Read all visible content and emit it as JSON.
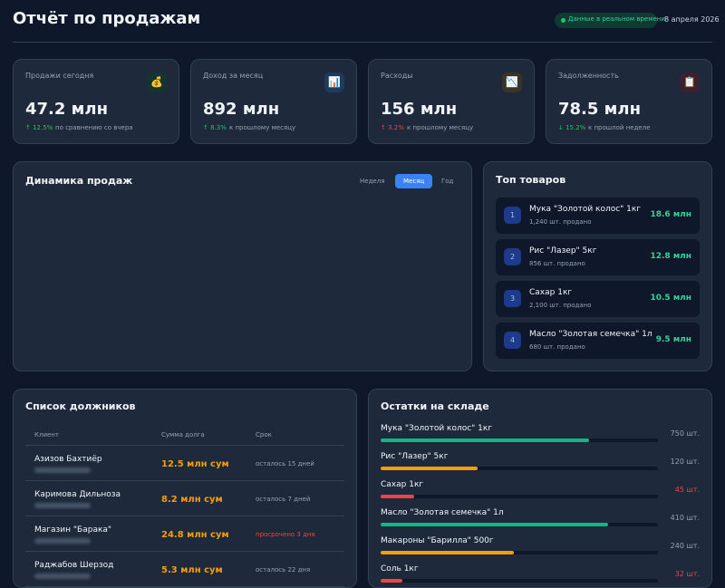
{
  "header": {
    "title": "Отчёт по продажам",
    "live_badge": "Данные в реальном времени",
    "date": "8 апреля 2026"
  },
  "kpis": [
    {
      "label": "Продажи сегодня",
      "icon": "💰",
      "icon_bg": "#14352f",
      "value": "47.2 млн",
      "change": "↑ 12.5%",
      "change_color": "#22c55e",
      "change_note": "по сравнению со вчера"
    },
    {
      "label": "Доход за месяц",
      "icon": "📊",
      "icon_bg": "#1e3a5f",
      "value": "892 млн",
      "change": "↑ 8.3%",
      "change_color": "#22c55e",
      "change_note": "к прошлому месяцу"
    },
    {
      "label": "Расходы",
      "icon": "📉",
      "icon_bg": "#3a3426",
      "value": "156 млн",
      "change": "↑ 3.2%",
      "change_color": "#ef4444",
      "change_note": "к прошлому месяцу"
    },
    {
      "label": "Задолженность",
      "icon": "📋",
      "icon_bg": "#3b2130",
      "value": "78.5 млн",
      "change": "↓ 15.2%",
      "change_color": "#22c55e",
      "change_note": "к прошлой неделе"
    }
  ],
  "sales_chart": {
    "title": "Динамика продаж",
    "tabs": [
      "Неделя",
      "Месяц",
      "Год"
    ],
    "active_tab": 1
  },
  "top_products": {
    "title": "Топ товаров",
    "items": [
      {
        "rank": "1",
        "name": "Мука \"Золотой колос\" 1кг",
        "sold": "1,240 шт. продано",
        "amount": "18.6 млн"
      },
      {
        "rank": "2",
        "name": "Рис \"Лазер\" 5кг",
        "sold": "856 шт. продано",
        "amount": "12.8 млн"
      },
      {
        "rank": "3",
        "name": "Сахар 1кг",
        "sold": "2,100 шт. продано",
        "amount": "10.5 млн"
      },
      {
        "rank": "4",
        "name": "Масло \"Золотая семечка\" 1л",
        "sold": "680 шт. продано",
        "amount": "9.5 млн"
      }
    ]
  },
  "debtors": {
    "title": "Список должников",
    "columns": [
      "Клиент",
      "Сумма долга",
      "Срок"
    ],
    "rows": [
      {
        "name": "Азизов Бахтиёр",
        "amount": "12.5 млн сум",
        "term": "осталось 15 дней",
        "term_color": "#94a3b8"
      },
      {
        "name": "Каримова Дильноза",
        "amount": "8.2 млн сум",
        "term": "осталось 7 дней",
        "term_color": "#94a3b8"
      },
      {
        "name": "Магазин \"Барака\"",
        "amount": "24.8 млн сум",
        "term": "просрочено 3 дня",
        "term_color": "#ef4444"
      },
      {
        "name": "Раджабов Шерзод",
        "amount": "5.3 млн сум",
        "term": "осталось 22 дня",
        "term_color": "#94a3b8"
      }
    ]
  },
  "stock": {
    "title": "Остатки на складе",
    "items": [
      {
        "name": "Мука \"Золотой колос\" 1кг",
        "qty": "750 шт.",
        "level": 75,
        "color": "#10b981"
      },
      {
        "name": "Рис \"Лазер\" 5кг",
        "qty": "120 шт.",
        "level": 35,
        "color": "#f59e0b"
      },
      {
        "name": "Сахар 1кг",
        "qty": "45 шт.",
        "level": 12,
        "color": "#ef4444"
      },
      {
        "name": "Масло \"Золотая семечка\" 1л",
        "qty": "410 шт.",
        "level": 82,
        "color": "#10b981"
      },
      {
        "name": "Макароны \"Барилла\" 500г",
        "qty": "240 шт.",
        "level": 48,
        "color": "#f59e0b"
      },
      {
        "name": "Соль 1кг",
        "qty": "32 шт.",
        "level": 8,
        "color": "#ef4444"
      }
    ]
  }
}
